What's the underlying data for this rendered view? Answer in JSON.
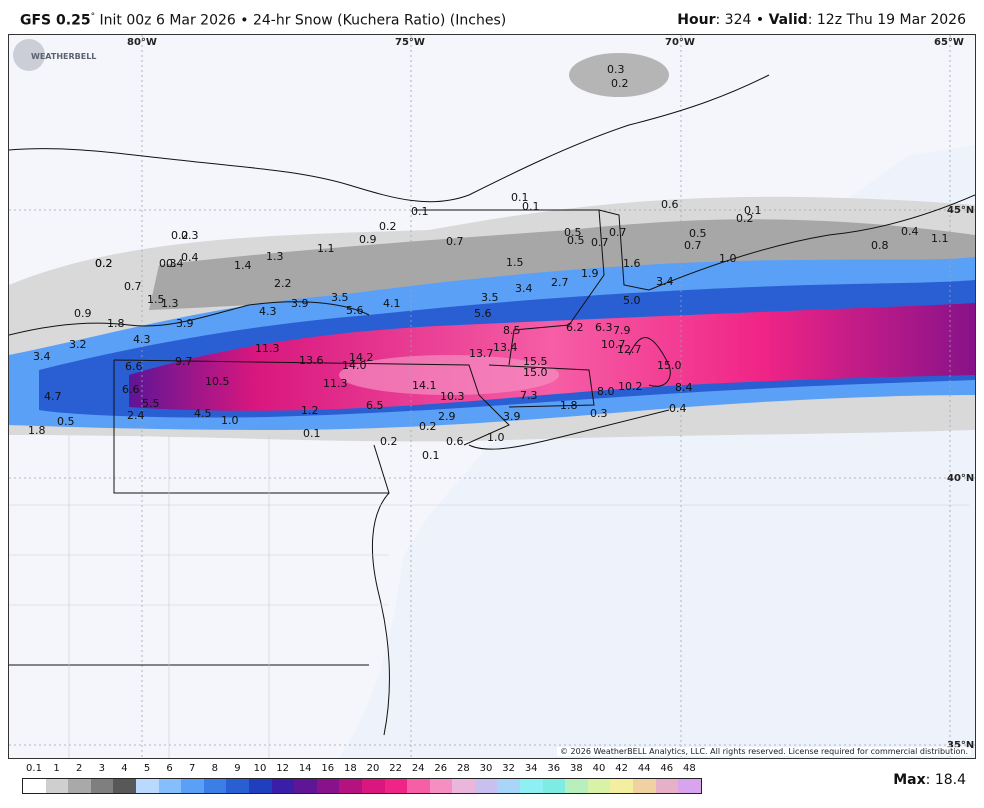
{
  "header": {
    "model": "GFS 0.25",
    "degree": "°",
    "init": "Init 00z 6 Mar 2026",
    "bullet": "•",
    "product": "24-hr Snow (Kuchera Ratio) (Inches)",
    "hour_label": "Hour",
    "hour_value": "324",
    "valid_label": "Valid",
    "valid_value": "12z Thu 19 Mar 2026"
  },
  "map": {
    "longitude_labels": [
      "80°W",
      "75°W",
      "70°W",
      "65°W"
    ],
    "latitude_labels": [
      "45°N",
      "40°N",
      "35°N"
    ],
    "snow_values": [
      {
        "v": "0.3"
      },
      {
        "v": "0.2"
      },
      {
        "v": "0.1"
      },
      {
        "v": "0.1"
      },
      {
        "v": "0.1"
      },
      {
        "v": "0.6"
      },
      {
        "v": "0.2"
      },
      {
        "v": "0.1"
      },
      {
        "v": "0.2"
      },
      {
        "v": "0.7"
      },
      {
        "v": "0.5"
      },
      {
        "v": "0.7"
      },
      {
        "v": "0.5"
      },
      {
        "v": "0.7"
      },
      {
        "v": "0.5"
      },
      {
        "v": "0.7"
      },
      {
        "v": "0.2"
      },
      {
        "v": "0.3"
      },
      {
        "v": "0.4"
      },
      {
        "v": "0.2"
      },
      {
        "v": "1.4"
      },
      {
        "v": "1.3"
      },
      {
        "v": "1.1"
      },
      {
        "v": "0.9"
      },
      {
        "v": "0.2"
      },
      {
        "v": "0.4"
      },
      {
        "v": "0.3"
      },
      {
        "v": "0.7"
      },
      {
        "v": "0.9"
      },
      {
        "v": "1.5"
      },
      {
        "v": "1.3"
      },
      {
        "v": "2.2"
      },
      {
        "v": "3.9"
      },
      {
        "v": "3.5"
      },
      {
        "v": "4.1"
      },
      {
        "v": "3.5"
      },
      {
        "v": "1.5"
      },
      {
        "v": "3.4"
      },
      {
        "v": "2.7"
      },
      {
        "v": "1.9"
      },
      {
        "v": "1.6"
      },
      {
        "v": "3.4"
      },
      {
        "v": "5.0"
      },
      {
        "v": "1.0"
      },
      {
        "v": "0.8"
      },
      {
        "v": "0.4"
      },
      {
        "v": "1.1"
      },
      {
        "v": "1.8"
      },
      {
        "v": "3.9"
      },
      {
        "v": "4.3"
      },
      {
        "v": "5.6"
      },
      {
        "v": "5.6"
      },
      {
        "v": "8.5"
      },
      {
        "v": "6.2"
      },
      {
        "v": "6.3"
      },
      {
        "v": "7.9"
      },
      {
        "v": "3.2"
      },
      {
        "v": "4.3"
      },
      {
        "v": "11.3"
      },
      {
        "v": "13.6"
      },
      {
        "v": "14.2"
      },
      {
        "v": "14.0"
      },
      {
        "v": "13.7"
      },
      {
        "v": "13.4"
      },
      {
        "v": "10.7"
      },
      {
        "v": "12.7"
      },
      {
        "v": "3.4"
      },
      {
        "v": "6.6"
      },
      {
        "v": "9.7"
      },
      {
        "v": "15.5"
      },
      {
        "v": "15.0"
      },
      {
        "v": "15.0"
      },
      {
        "v": "10.5"
      },
      {
        "v": "11.3"
      },
      {
        "v": "14.1"
      },
      {
        "v": "10.3"
      },
      {
        "v": "8.0"
      },
      {
        "v": "10.2"
      },
      {
        "v": "8.4"
      },
      {
        "v": "4.7"
      },
      {
        "v": "6.6"
      },
      {
        "v": "5.5"
      },
      {
        "v": "4.5"
      },
      {
        "v": "2.4"
      },
      {
        "v": "1.0"
      },
      {
        "v": "1.2"
      },
      {
        "v": "6.5"
      },
      {
        "v": "7.3"
      },
      {
        "v": "2.9"
      },
      {
        "v": "3.9"
      },
      {
        "v": "1.8"
      },
      {
        "v": "0.3"
      },
      {
        "v": "0.4"
      },
      {
        "v": "1.8"
      },
      {
        "v": "0.5"
      },
      {
        "v": "0.1"
      },
      {
        "v": "0.2"
      },
      {
        "v": "0.2"
      },
      {
        "v": "0.6"
      },
      {
        "v": "1.0"
      },
      {
        "v": "0.1"
      }
    ],
    "copyright": "© 2026 WeatherBELL Analytics, LLC. All rights reserved. License required for commercial distribution.",
    "logo_text": "WEATHERBELL"
  },
  "legend": {
    "labels": [
      "0.1",
      "1",
      "2",
      "3",
      "4",
      "5",
      "6",
      "7",
      "8",
      "9",
      "10",
      "12",
      "14",
      "16",
      "18",
      "20",
      "22",
      "24",
      "26",
      "28",
      "30",
      "32",
      "34",
      "36",
      "38",
      "40",
      "42",
      "44",
      "46",
      "48"
    ],
    "colors": [
      "#ffffff",
      "#cfcfcf",
      "#a9a9a9",
      "#7f7f7f",
      "#585858",
      "#b9d9ff",
      "#86bdfb",
      "#5aa0f6",
      "#3b7fe6",
      "#2a5fd3",
      "#1f3fbf",
      "#3a1ea8",
      "#5e1596",
      "#881289",
      "#b3127f",
      "#d9177e",
      "#f02486",
      "#f65ea6",
      "#f58fc2",
      "#eab6dc",
      "#c9c0ef",
      "#a9d6f8",
      "#8ef0f2",
      "#7fece3",
      "#b8f0bd",
      "#d8f2a8",
      "#f3eea0",
      "#f0d2a2",
      "#e7b0c9",
      "#d8a4ee"
    ]
  },
  "max": {
    "label": "Max",
    "value": "18.4"
  }
}
